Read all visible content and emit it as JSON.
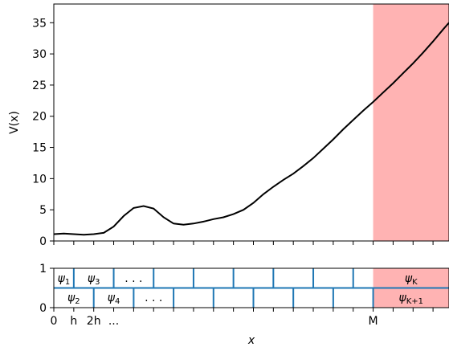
{
  "chart_data": [
    {
      "type": "line",
      "title": "",
      "xlabel": "",
      "ylabel": "V(x)",
      "xlim": [
        0,
        9.9
      ],
      "ylim": [
        0,
        38
      ],
      "yticks": [
        0,
        5,
        10,
        15,
        20,
        25,
        30,
        35
      ],
      "grid": false,
      "highlight": {
        "from": 8.0,
        "to": 9.9,
        "color": "#ffb3b3"
      },
      "series": [
        {
          "color": "#000000",
          "x": [
            0,
            0.25,
            0.5,
            0.75,
            1.0,
            1.25,
            1.5,
            1.75,
            2.0,
            2.25,
            2.5,
            2.75,
            3.0,
            3.25,
            3.5,
            3.75,
            4.0,
            4.25,
            4.5,
            4.75,
            5.0,
            5.25,
            5.5,
            5.75,
            6.0,
            6.25,
            6.5,
            6.75,
            7.0,
            7.25,
            7.5,
            7.75,
            8.0,
            8.25,
            8.5,
            8.75,
            9.0,
            9.25,
            9.5,
            9.75,
            9.9
          ],
          "y": [
            1.1,
            1.2,
            1.1,
            1.0,
            1.1,
            1.3,
            2.3,
            4.0,
            5.3,
            5.6,
            5.2,
            3.8,
            2.8,
            2.6,
            2.8,
            3.1,
            3.5,
            3.8,
            4.3,
            5.0,
            6.1,
            7.5,
            8.7,
            9.8,
            10.8,
            12.0,
            13.3,
            14.8,
            16.3,
            17.9,
            19.4,
            20.9,
            22.3,
            23.8,
            25.3,
            26.9,
            28.5,
            30.2,
            32.0,
            33.9,
            35.0
          ]
        }
      ]
    },
    {
      "type": "table",
      "xlabel": "x",
      "ylim": [
        0,
        1
      ],
      "yticks": [
        0,
        1
      ],
      "xtick_labels": [
        "0",
        "h",
        "2h",
        "...",
        "M"
      ],
      "highlight": {
        "from": 8.0,
        "to": 9.9,
        "color": "#ffb3b3"
      },
      "top_row": [
        "ψ1",
        "ψ3",
        ". . .",
        "",
        "",
        "",
        "",
        "",
        "",
        "ψK"
      ],
      "bottom_row": [
        "ψ2",
        "ψ4",
        ". . .",
        "",
        "",
        "",
        "",
        "",
        "",
        "ψK+1"
      ]
    }
  ]
}
